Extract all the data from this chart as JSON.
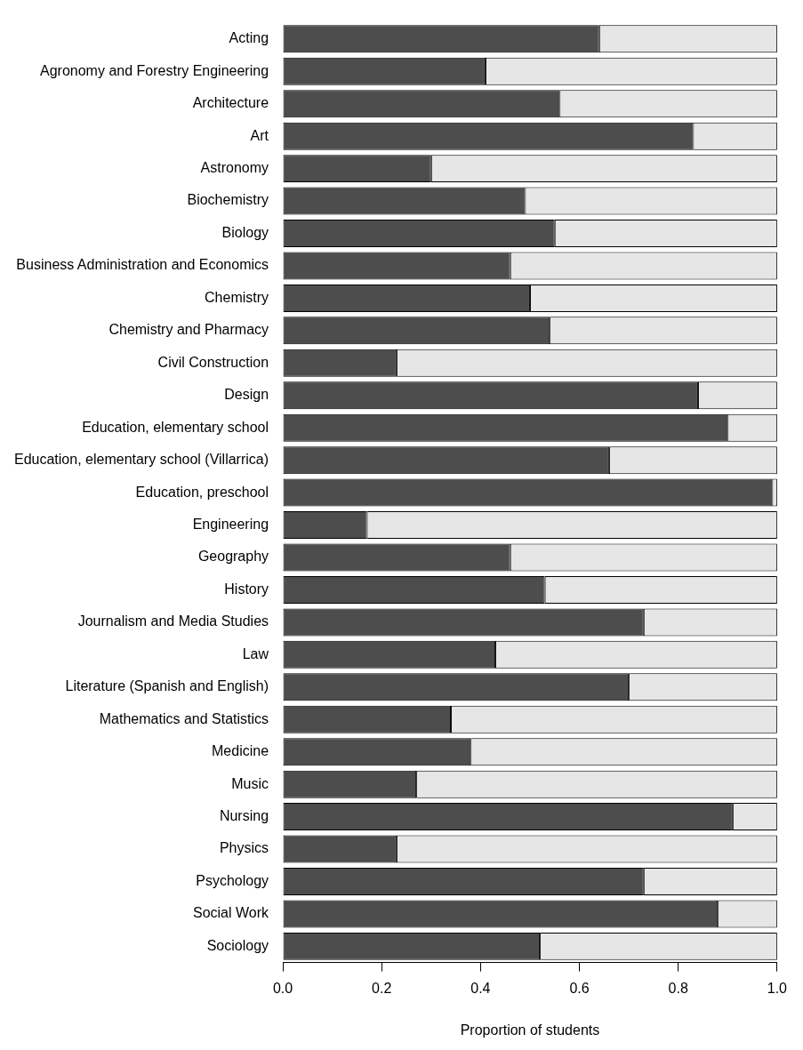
{
  "chart_data": {
    "type": "bar",
    "orientation": "horizontal",
    "stacked": true,
    "xlabel": "Proportion of students",
    "categories": [
      "Acting",
      "Agronomy and Forestry Engineering",
      "Architecture",
      "Art",
      "Astronomy",
      "Biochemistry",
      "Biology",
      "Business Administration and Economics",
      "Chemistry",
      "Chemistry and Pharmacy",
      "Civil Construction",
      "Design",
      "Education, elementary school",
      "Education, elementary school (Villarrica)",
      "Education, preschool",
      "Engineering",
      "Geography",
      "History",
      "Journalism and Media Studies",
      "Law",
      "Literature (Spanish and English)",
      "Mathematics and Statistics",
      "Medicine",
      "Music",
      "Nursing",
      "Physics",
      "Psychology",
      "Social Work",
      "Sociology"
    ],
    "series": [
      {
        "color": "#4d4d4d",
        "values": [
          0.64,
          0.41,
          0.56,
          0.83,
          0.3,
          0.49,
          0.55,
          0.46,
          0.5,
          0.54,
          0.23,
          0.84,
          0.9,
          0.66,
          0.99,
          0.17,
          0.46,
          0.53,
          0.73,
          0.43,
          0.7,
          0.34,
          0.38,
          0.27,
          0.91,
          0.23,
          0.73,
          0.88,
          0.52
        ]
      },
      {
        "color": "#e6e6e6",
        "values": [
          0.36,
          0.59,
          0.44,
          0.17,
          0.7,
          0.51,
          0.45,
          0.54,
          0.5,
          0.46,
          0.77,
          0.16,
          0.1,
          0.34,
          0.01,
          0.83,
          0.54,
          0.47,
          0.27,
          0.57,
          0.3,
          0.66,
          0.62,
          0.73,
          0.09,
          0.77,
          0.27,
          0.12,
          0.48
        ]
      }
    ],
    "xlim": [
      0,
      1
    ],
    "xticks": [
      {
        "value": 0,
        "label": "0.0"
      },
      {
        "value": 0.2,
        "label": "0.2"
      },
      {
        "value": 0.4,
        "label": "0.4"
      },
      {
        "value": 0.6,
        "label": "0.6"
      },
      {
        "value": 0.8,
        "label": "0.8"
      },
      {
        "value": 1,
        "label": "1.0"
      }
    ],
    "grid": false,
    "legend": false
  }
}
